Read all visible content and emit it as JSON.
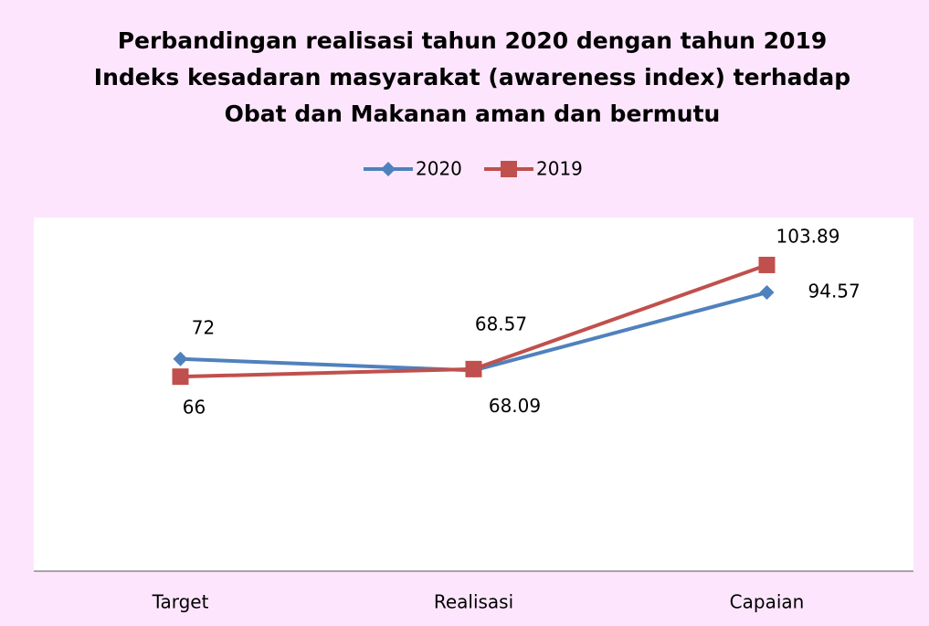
{
  "chart_data": {
    "type": "line",
    "title": [
      "Perbandingan realisasi tahun 2020 dengan tahun 2019",
      "Indeks kesadaran masyarakat (awareness index) terhadap",
      "Obat dan Makanan aman dan bermutu"
    ],
    "categories": [
      "Target",
      "Realisasi",
      "Capaian"
    ],
    "series": [
      {
        "name": "2020",
        "color": "#4f81bd",
        "marker": "diamond",
        "values": [
          72,
          68.09,
          94.57
        ]
      },
      {
        "name": "2019",
        "color": "#c0504d",
        "marker": "square",
        "values": [
          66,
          68.57,
          103.89
        ]
      }
    ],
    "ylim": [
      0,
      120
    ],
    "legend": "top"
  }
}
